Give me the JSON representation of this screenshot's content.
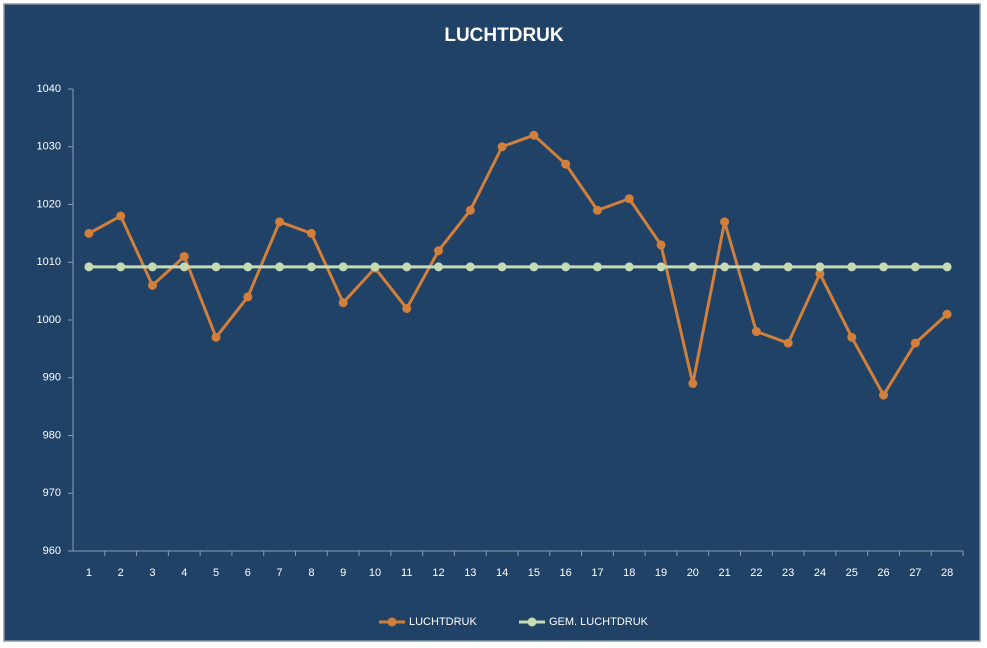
{
  "chart_data": {
    "type": "line",
    "title": "LUCHTDRUK",
    "categories": [
      1,
      2,
      3,
      4,
      5,
      6,
      7,
      8,
      9,
      10,
      11,
      12,
      13,
      14,
      15,
      16,
      17,
      18,
      19,
      20,
      21,
      22,
      23,
      24,
      25,
      26,
      27,
      28
    ],
    "series": [
      {
        "name": "LUCHTDRUK",
        "color": "#d27f3b",
        "values": [
          1015,
          1018,
          1006,
          1011,
          997,
          1004,
          1017,
          1015,
          1003,
          1009,
          1002,
          1012,
          1019,
          1030,
          1032,
          1027,
          1019,
          1021,
          1013,
          989,
          1017,
          998,
          996,
          1008,
          997,
          987,
          996,
          1001
        ]
      },
      {
        "name": "GEM. LUCHTDRUK",
        "color": "#c6dbb4",
        "values": [
          1009.2,
          1009.2,
          1009.2,
          1009.2,
          1009.2,
          1009.2,
          1009.2,
          1009.2,
          1009.2,
          1009.2,
          1009.2,
          1009.2,
          1009.2,
          1009.2,
          1009.2,
          1009.2,
          1009.2,
          1009.2,
          1009.2,
          1009.2,
          1009.2,
          1009.2,
          1009.2,
          1009.2,
          1009.2,
          1009.2,
          1009.2,
          1009.2
        ]
      }
    ],
    "ylim": [
      960,
      1040
    ],
    "yticks": [
      960,
      970,
      980,
      990,
      1000,
      1010,
      1020,
      1030,
      1040
    ],
    "grid": false,
    "legend": "bottom"
  }
}
